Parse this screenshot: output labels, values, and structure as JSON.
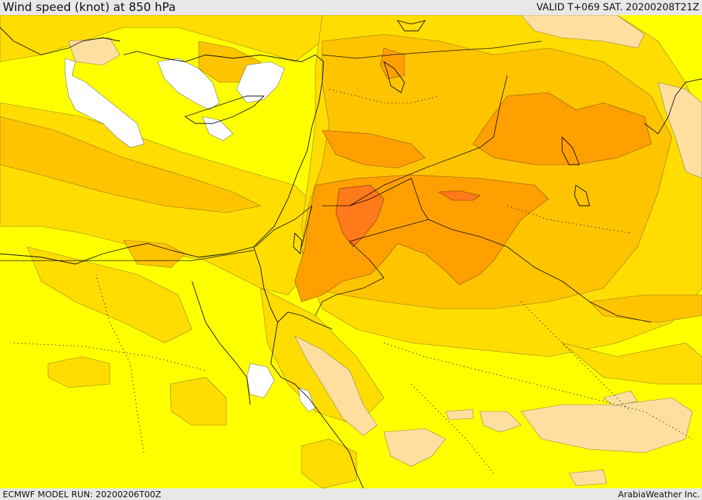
{
  "header": {
    "title": "Wind speed (knot) at 850 hPa",
    "valid_time": "VALID T+069 SAT. 20200208T21Z"
  },
  "footer": {
    "model_run": "ECMWF MODEL RUN: 20200206T00Z",
    "credit": "ArabiaWeather Inc."
  },
  "colors": {
    "level_1": "#ffffff",
    "level_2": "#ffdfa0",
    "level_3": "#ffff00",
    "level_4": "#ffdd00",
    "level_5": "#ffc400",
    "level_6": "#ffa000",
    "level_7": "#ff7a1a",
    "coast_and_border": "#000000"
  }
}
